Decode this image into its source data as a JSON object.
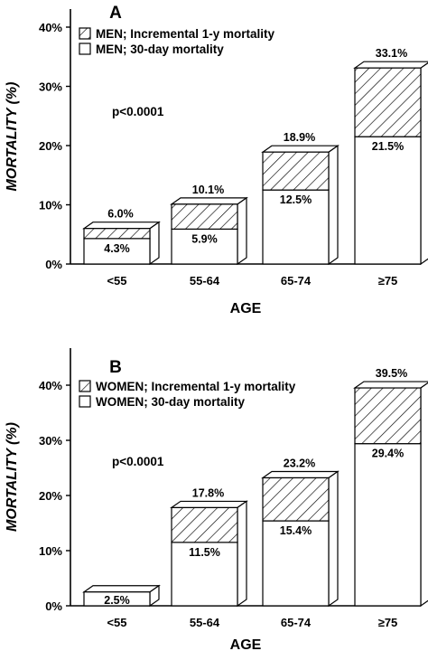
{
  "chart_data": [
    {
      "type": "bar",
      "panel_label": "A",
      "categories": [
        "<55",
        "55-64",
        "65-74",
        "≥75"
      ],
      "series": [
        {
          "name": "MEN; 30-day mortality",
          "values": [
            4.3,
            5.9,
            12.5,
            21.5
          ]
        },
        {
          "name": "MEN; Incremental 1-y mortality",
          "values": [
            1.7,
            4.2,
            6.4,
            11.6
          ]
        }
      ],
      "bar_top_labels": [
        "6.0%",
        "10.1%",
        "18.9%",
        "33.1%"
      ],
      "inner_labels": [
        "4.3%",
        "5.9%",
        "12.5%",
        "21.5%"
      ],
      "xlabel": "AGE",
      "ylabel": "MORTALITY (%)",
      "yticks": [
        "0%",
        "10%",
        "20%",
        "30%",
        "40%"
      ],
      "ylim": [
        0,
        45
      ],
      "annotation": "p<0.0001",
      "legend_position": "top-left",
      "grid": false
    },
    {
      "type": "bar",
      "panel_label": "B",
      "categories": [
        "<55",
        "55-64",
        "65-74",
        "≥75"
      ],
      "series": [
        {
          "name": "WOMEN; 30-day mortality",
          "values": [
            2.5,
            11.5,
            15.4,
            29.4
          ]
        },
        {
          "name": "WOMEN; Incremental 1-y mortality",
          "values": [
            0,
            6.3,
            7.8,
            10.1
          ]
        }
      ],
      "bar_top_labels": [
        "",
        "17.8%",
        "23.2%",
        "39.5%"
      ],
      "inner_labels": [
        "2.5%",
        "11.5%",
        "15.4%",
        "29.4%"
      ],
      "xlabel": "AGE",
      "ylabel": "MORTALITY (%)",
      "yticks": [
        "0%",
        "10%",
        "20%",
        "30%",
        "40%"
      ],
      "ylim": [
        0,
        45
      ],
      "annotation": "p<0.0001",
      "legend_position": "top-left",
      "grid": false
    }
  ]
}
